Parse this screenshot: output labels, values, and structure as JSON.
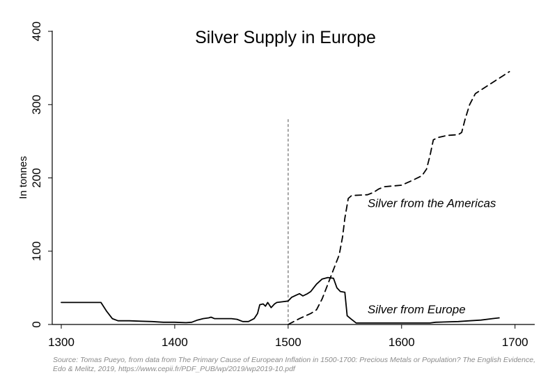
{
  "chart_data": {
    "type": "line",
    "title": "Silver Supply in Europe",
    "xlabel": "",
    "ylabel": "In tonnes",
    "xlim": [
      1300,
      1710
    ],
    "ylim": [
      0,
      400
    ],
    "x_ticks": [
      1300,
      1400,
      1500,
      1600,
      1700
    ],
    "y_ticks": [
      0,
      100,
      200,
      300,
      400
    ],
    "grid": false,
    "legend": "none",
    "reference_line": {
      "x": 1500,
      "y_top": 280,
      "style": "dotted",
      "color": "#888888"
    },
    "annotations": [
      {
        "text": "Silver from the Americas",
        "x": 1570,
        "y": 160
      },
      {
        "text": "Silver from Europe",
        "x": 1570,
        "y": 15
      }
    ],
    "series": [
      {
        "name": "Silver from Europe",
        "style": "solid",
        "color": "#000000",
        "points": [
          [
            1300,
            30
          ],
          [
            1330,
            30
          ],
          [
            1335,
            30
          ],
          [
            1340,
            18
          ],
          [
            1345,
            8
          ],
          [
            1350,
            5
          ],
          [
            1360,
            5
          ],
          [
            1370,
            4.5
          ],
          [
            1380,
            4
          ],
          [
            1390,
            3
          ],
          [
            1400,
            3
          ],
          [
            1410,
            2.5
          ],
          [
            1415,
            3
          ],
          [
            1420,
            6
          ],
          [
            1425,
            8
          ],
          [
            1430,
            9
          ],
          [
            1432,
            10
          ],
          [
            1435,
            8
          ],
          [
            1440,
            8
          ],
          [
            1450,
            8
          ],
          [
            1455,
            7
          ],
          [
            1460,
            4
          ],
          [
            1465,
            4
          ],
          [
            1470,
            8
          ],
          [
            1473,
            15
          ],
          [
            1475,
            27
          ],
          [
            1478,
            28
          ],
          [
            1480,
            25
          ],
          [
            1482,
            30
          ],
          [
            1485,
            23
          ],
          [
            1488,
            28
          ],
          [
            1490,
            30
          ],
          [
            1495,
            31
          ],
          [
            1500,
            32
          ],
          [
            1503,
            37
          ],
          [
            1507,
            40
          ],
          [
            1510,
            42
          ],
          [
            1513,
            39
          ],
          [
            1517,
            42
          ],
          [
            1520,
            45
          ],
          [
            1525,
            55
          ],
          [
            1530,
            62
          ],
          [
            1535,
            64
          ],
          [
            1540,
            63
          ],
          [
            1543,
            50
          ],
          [
            1546,
            45
          ],
          [
            1550,
            44
          ],
          [
            1552,
            12
          ],
          [
            1555,
            8
          ],
          [
            1560,
            2
          ],
          [
            1570,
            2
          ],
          [
            1600,
            2
          ],
          [
            1625,
            2
          ],
          [
            1630,
            3
          ],
          [
            1650,
            4
          ],
          [
            1660,
            5
          ],
          [
            1670,
            6
          ],
          [
            1680,
            8
          ],
          [
            1686,
            9
          ]
        ]
      },
      {
        "name": "Silver from the Americas",
        "style": "dashed",
        "color": "#000000",
        "points": [
          [
            1500,
            0
          ],
          [
            1510,
            8
          ],
          [
            1520,
            15
          ],
          [
            1525,
            20
          ],
          [
            1530,
            35
          ],
          [
            1535,
            55
          ],
          [
            1540,
            75
          ],
          [
            1545,
            95
          ],
          [
            1548,
            120
          ],
          [
            1550,
            145
          ],
          [
            1553,
            172
          ],
          [
            1556,
            176
          ],
          [
            1570,
            177
          ],
          [
            1575,
            180
          ],
          [
            1580,
            185
          ],
          [
            1585,
            188
          ],
          [
            1600,
            190
          ],
          [
            1610,
            197
          ],
          [
            1618,
            203
          ],
          [
            1622,
            212
          ],
          [
            1625,
            230
          ],
          [
            1628,
            252
          ],
          [
            1632,
            255
          ],
          [
            1640,
            258
          ],
          [
            1650,
            259
          ],
          [
            1653,
            262
          ],
          [
            1656,
            280
          ],
          [
            1660,
            300
          ],
          [
            1665,
            315
          ],
          [
            1680,
            330
          ],
          [
            1690,
            340
          ],
          [
            1695,
            345
          ]
        ]
      }
    ]
  },
  "source_text": "Source: Tomas Pueyo, from data from The Primary Cause of European Inflation in 1500-1700: Precious Metals or Population? The English Evidence, Edo & Melitz, 2019, https://www.cepii.fr/PDF_PUB/wp/2019/wp2019-10.pdf"
}
